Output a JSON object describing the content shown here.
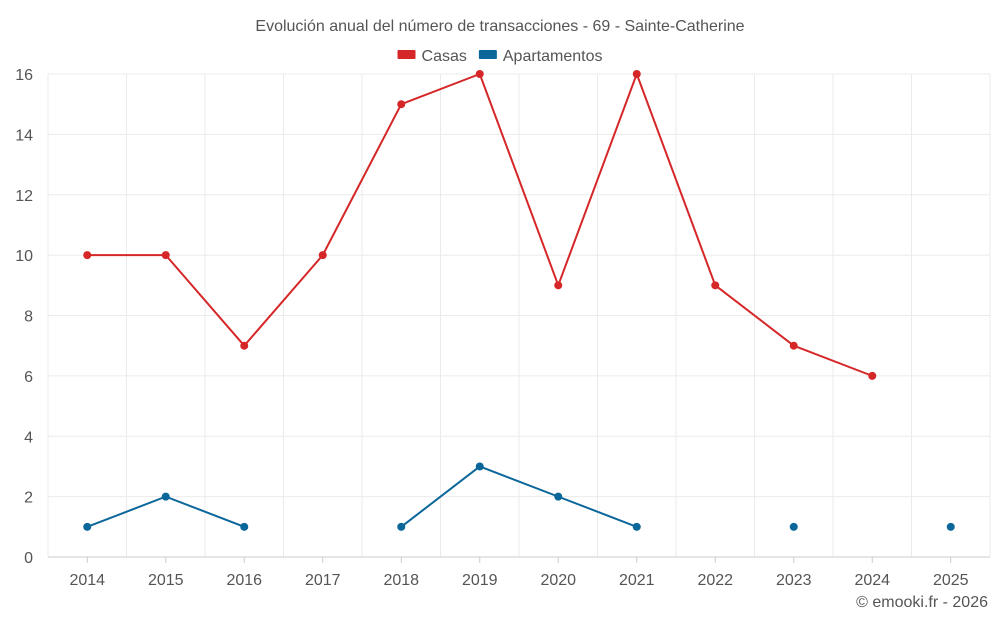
{
  "chart_data": {
    "type": "line",
    "title": "Evolución anual del número de transacciones - 69 - Sainte-Catherine",
    "xlabel": "",
    "ylabel": "",
    "categories": [
      "2014",
      "2015",
      "2016",
      "2017",
      "2018",
      "2019",
      "2020",
      "2021",
      "2022",
      "2023",
      "2024",
      "2025"
    ],
    "ylim": [
      0,
      16
    ],
    "yticks": [
      0,
      2,
      4,
      6,
      8,
      10,
      12,
      14,
      16
    ],
    "grid": true,
    "legend_position": "top-center",
    "series": [
      {
        "name": "Casas",
        "color": "#d62728",
        "values": [
          10,
          10,
          7,
          10,
          15,
          16,
          9,
          16,
          9,
          7,
          6,
          null
        ]
      },
      {
        "name": "Apartamentos",
        "color": "#0b6699",
        "values": [
          1,
          2,
          1,
          null,
          1,
          3,
          2,
          1,
          null,
          1,
          null,
          1
        ]
      }
    ]
  },
  "credit": "© emooki.fr - 2026"
}
